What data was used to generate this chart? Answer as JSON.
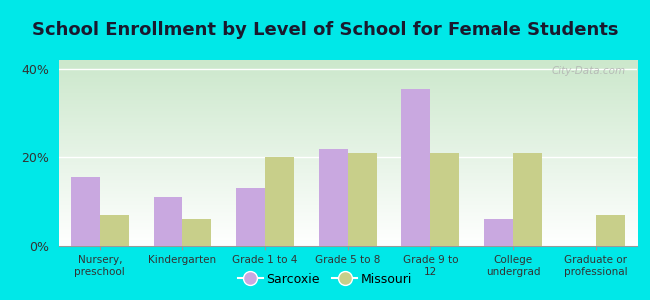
{
  "title": "School Enrollment by Level of School for Female Students",
  "categories": [
    "Nursery,\npreschool",
    "Kindergarten",
    "Grade 1 to 4",
    "Grade 5 to 8",
    "Grade 9 to\n12",
    "College\nundergrad",
    "Graduate or\nprofessional"
  ],
  "sarcoxie": [
    15.5,
    11.0,
    13.0,
    22.0,
    35.5,
    6.0,
    0.0
  ],
  "missouri": [
    7.0,
    6.0,
    20.0,
    21.0,
    21.0,
    21.0,
    7.0
  ],
  "sarcoxie_color": "#c9a8e0",
  "missouri_color": "#c8cf8a",
  "background_color": "#00e8e8",
  "ylim": [
    0,
    42
  ],
  "yticks": [
    0,
    20,
    40
  ],
  "ytick_labels": [
    "0%",
    "20%",
    "40%"
  ],
  "bar_width": 0.35,
  "legend_sarcoxie": "Sarcoxie",
  "legend_missouri": "Missouri",
  "title_fontsize": 13,
  "watermark": "City-Data.com"
}
